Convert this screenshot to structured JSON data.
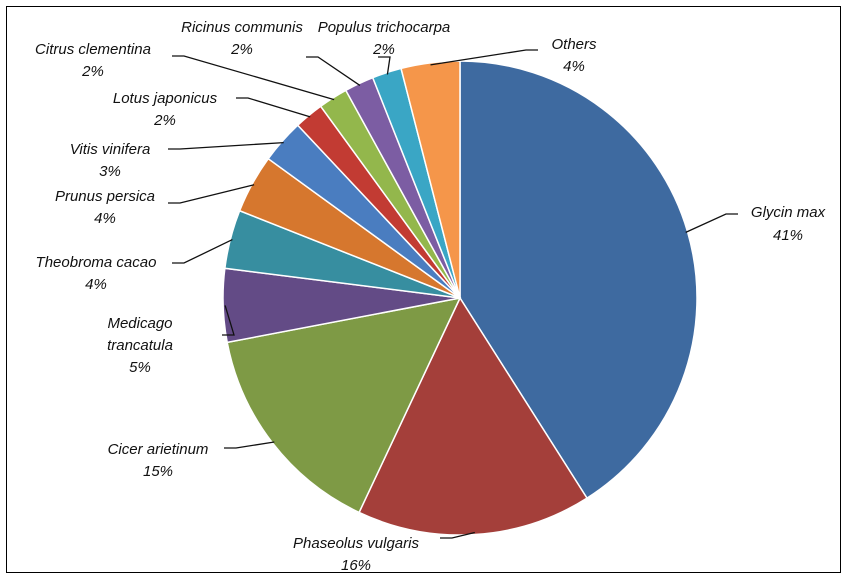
{
  "chart_data": {
    "type": "pie",
    "slices": [
      {
        "label": "Glycin max",
        "value": 41,
        "color": "#3e6aa0"
      },
      {
        "label": "Phaseolus vulgaris",
        "value": 16,
        "color": "#a43f3a"
      },
      {
        "label": "Cicer arietinum",
        "value": 15,
        "color": "#7e9a45"
      },
      {
        "label": "Medicago trancatula",
        "value": 5,
        "color": "#634b86"
      },
      {
        "label": "Theobroma cacao",
        "value": 4,
        "color": "#378ea0"
      },
      {
        "label": "Prunus persica",
        "value": 4,
        "color": "#d6772e"
      },
      {
        "label": "Vitis vinifera",
        "value": 3,
        "color": "#4a7dc0"
      },
      {
        "label": "Lotus japonicus",
        "value": 2,
        "color": "#c23b33"
      },
      {
        "label": "Citrus clementina",
        "value": 2,
        "color": "#93b74c"
      },
      {
        "label": "Ricinus communis",
        "value": 2,
        "color": "#7c5da3"
      },
      {
        "label": "Populus trichocarpa",
        "value": 2,
        "color": "#3aa6c5"
      },
      {
        "label": "Others",
        "value": 4,
        "color": "#f5964a"
      }
    ],
    "data_labels": [
      {
        "name": "Glycin max",
        "pct": "41%"
      },
      {
        "name": "Phaseolus vulgaris",
        "pct": "16%"
      },
      {
        "name": "Cicer arietinum",
        "pct": "15%"
      },
      {
        "name": "Medicago trancatula",
        "pct": "5%"
      },
      {
        "name": "Theobroma cacao",
        "pct": "4%"
      },
      {
        "name": "Prunus persica",
        "pct": "4%"
      },
      {
        "name": "Vitis vinifera",
        "pct": "3%"
      },
      {
        "name": "Lotus japonicus",
        "pct": "2%"
      },
      {
        "name": "Citrus clementina",
        "pct": "2%"
      },
      {
        "name": "Ricinus communis",
        "pct": "2%"
      },
      {
        "name": "Populus trichocarpa",
        "pct": "2%"
      },
      {
        "name": "Others",
        "pct": "4%"
      }
    ],
    "start_angle": "12 o'clock",
    "direction": "clockwise",
    "legend": "none"
  }
}
